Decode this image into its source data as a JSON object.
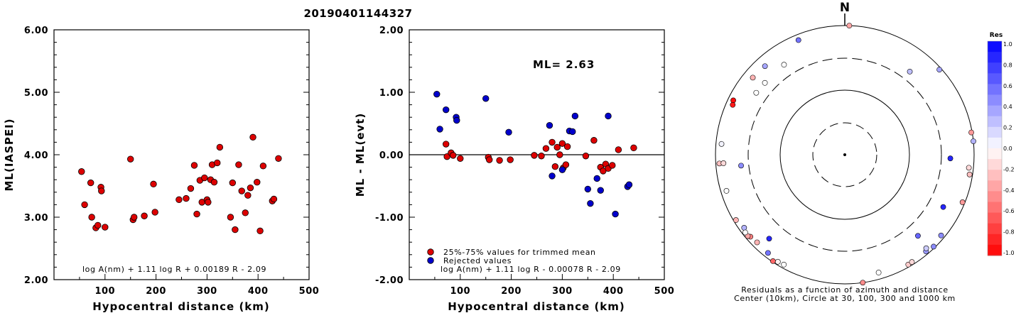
{
  "title": "20190401144327",
  "colors": {
    "red": "#dd0000",
    "blue": "#0000cc"
  },
  "chart_data": [
    {
      "type": "scatter",
      "xlabel": "Hypocentral distance (km)",
      "ylabel": "ML(IASPEI)",
      "xlim": [
        0,
        500
      ],
      "ylim": [
        2.0,
        6.0
      ],
      "xticks": [
        "100",
        "200",
        "300",
        "400",
        "500"
      ],
      "yticks": [
        "2.00",
        "3.00",
        "4.00",
        "5.00",
        "6.00"
      ],
      "formula": "log A(nm) + 1.11 log R + 0.00189 R - 2.09",
      "points": [
        [
          54,
          3.73
        ],
        [
          60,
          3.2
        ],
        [
          72,
          3.55
        ],
        [
          74,
          3.0
        ],
        [
          82,
          2.83
        ],
        [
          86,
          2.87
        ],
        [
          92,
          3.48
        ],
        [
          93,
          3.42
        ],
        [
          100,
          2.84
        ],
        [
          150,
          3.93
        ],
        [
          155,
          2.96
        ],
        [
          157,
          3.0
        ],
        [
          177,
          3.02
        ],
        [
          195,
          3.53
        ],
        [
          198,
          3.08
        ],
        [
          245,
          3.28
        ],
        [
          259,
          3.3
        ],
        [
          268,
          3.46
        ],
        [
          275,
          3.83
        ],
        [
          280,
          3.05
        ],
        [
          286,
          3.59
        ],
        [
          290,
          3.24
        ],
        [
          295,
          3.63
        ],
        [
          300,
          3.28
        ],
        [
          302,
          3.24
        ],
        [
          307,
          3.6
        ],
        [
          310,
          3.84
        ],
        [
          314,
          3.56
        ],
        [
          320,
          3.87
        ],
        [
          325,
          4.12
        ],
        [
          346,
          3.0
        ],
        [
          350,
          3.55
        ],
        [
          355,
          2.8
        ],
        [
          362,
          3.84
        ],
        [
          368,
          3.42
        ],
        [
          375,
          3.07
        ],
        [
          380,
          3.35
        ],
        [
          385,
          3.47
        ],
        [
          390,
          4.28
        ],
        [
          398,
          3.56
        ],
        [
          404,
          2.78
        ],
        [
          410,
          3.82
        ],
        [
          428,
          3.26
        ],
        [
          431,
          3.29
        ],
        [
          440,
          3.94
        ]
      ]
    },
    {
      "type": "scatter",
      "xlabel": "Hypocentral distance (km)",
      "ylabel": "ML - ML(evt)",
      "xlim": [
        0,
        500
      ],
      "ylim": [
        -2.0,
        2.0
      ],
      "xticks": [
        "100",
        "200",
        "300",
        "400",
        "500"
      ],
      "yticks": [
        "-2.00",
        "-1.00",
        "0.00",
        "1.00",
        "2.00"
      ],
      "annotation": "ML= 2.63",
      "formula": "log A(nm) + 1.11 log R - 0.00078 R - 2.09",
      "legend": [
        "25%-75% values for trimmed mean",
        "Rejected values"
      ],
      "series": [
        {
          "name": "25%-75% values for trimmed mean",
          "color": "red",
          "points": [
            [
              72,
              0.17
            ],
            [
              74,
              -0.03
            ],
            [
              82,
              0.03
            ],
            [
              86,
              -0.01
            ],
            [
              100,
              -0.06
            ],
            [
              155,
              -0.04
            ],
            [
              157,
              -0.08
            ],
            [
              177,
              -0.09
            ],
            [
              198,
              -0.08
            ],
            [
              245,
              -0.01
            ],
            [
              259,
              -0.02
            ],
            [
              268,
              0.1
            ],
            [
              280,
              0.2
            ],
            [
              286,
              -0.19
            ],
            [
              290,
              0.12
            ],
            [
              295,
              0.0
            ],
            [
              300,
              0.18
            ],
            [
              302,
              -0.21
            ],
            [
              307,
              -0.16
            ],
            [
              310,
              0.13
            ],
            [
              346,
              -0.02
            ],
            [
              362,
              0.23
            ],
            [
              375,
              -0.2
            ],
            [
              380,
              -0.26
            ],
            [
              385,
              -0.15
            ],
            [
              390,
              -0.22
            ],
            [
              398,
              -0.17
            ],
            [
              410,
              0.08
            ],
            [
              440,
              0.11
            ]
          ]
        },
        {
          "name": "Rejected values",
          "color": "blue",
          "points": [
            [
              54,
              0.97
            ],
            [
              60,
              0.41
            ],
            [
              72,
              0.72
            ],
            [
              92,
              0.6
            ],
            [
              93,
              0.55
            ],
            [
              150,
              0.9
            ],
            [
              195,
              0.36
            ],
            [
              275,
              0.47
            ],
            [
              280,
              -0.34
            ],
            [
              300,
              -0.24
            ],
            [
              314,
              0.38
            ],
            [
              320,
              0.37
            ],
            [
              325,
              0.62
            ],
            [
              350,
              -0.55
            ],
            [
              355,
              -0.78
            ],
            [
              368,
              -0.38
            ],
            [
              375,
              -0.57
            ],
            [
              390,
              0.62
            ],
            [
              404,
              -0.95
            ],
            [
              428,
              -0.51
            ],
            [
              431,
              -0.48
            ]
          ]
        }
      ]
    },
    {
      "type": "polar-scatter",
      "north_label": "N",
      "caption_line1": "Residuals as a function of azimuth and distance",
      "caption_line2": "Center (10km), Circle at 30, 100, 300 and 1000 km",
      "colorbar_title": "Res",
      "colorbar_ticks": [
        "1.0",
        "0.8",
        "0.6",
        "0.4",
        "0.2",
        "0.0",
        "-0.2",
        "-0.4",
        "-0.6",
        "-0.8",
        "-1.0"
      ],
      "stations": [
        {
          "az": 2,
          "dist": 1000,
          "res": -0.35
        },
        {
          "az": 338,
          "dist": 820,
          "res": 0.55
        },
        {
          "az": 310,
          "dist": 720,
          "res": -0.3
        },
        {
          "az": 296,
          "dist": 830,
          "res": -0.95
        },
        {
          "az": 294,
          "dist": 790,
          "res": -0.9
        },
        {
          "az": 318,
          "dist": 700,
          "res": 0.35
        },
        {
          "az": 326,
          "dist": 480,
          "res": 0.0
        },
        {
          "az": 312,
          "dist": 460,
          "res": 0.0
        },
        {
          "az": 305,
          "dist": 470,
          "res": 0.0
        },
        {
          "az": 275,
          "dist": 820,
          "res": 0.05
        },
        {
          "az": 266,
          "dist": 880,
          "res": -0.25
        },
        {
          "az": 266,
          "dist": 760,
          "res": -0.15
        },
        {
          "az": 253,
          "dist": 820,
          "res": 0.0
        },
        {
          "az": 264,
          "dist": 410,
          "res": 0.45
        },
        {
          "az": 38,
          "dist": 430,
          "res": 0.25
        },
        {
          "az": 48,
          "dist": 930,
          "res": 0.35
        },
        {
          "az": 80,
          "dist": 970,
          "res": -0.4
        },
        {
          "az": 84,
          "dist": 1000,
          "res": 0.3
        },
        {
          "az": 92,
          "dist": 430,
          "res": 0.85
        },
        {
          "az": 96,
          "dist": 850,
          "res": -0.15
        },
        {
          "az": 99,
          "dist": 900,
          "res": -0.25
        },
        {
          "az": 112,
          "dist": 920,
          "res": -0.4
        },
        {
          "az": 118,
          "dist": 530,
          "res": 0.85
        },
        {
          "az": 130,
          "dist": 880,
          "res": 0.45
        },
        {
          "az": 136,
          "dist": 950,
          "res": 0.45
        },
        {
          "az": 138,
          "dist": 490,
          "res": 0.6
        },
        {
          "az": 140,
          "dist": 900,
          "res": 0.4
        },
        {
          "az": 139,
          "dist": 830,
          "res": 0.2
        },
        {
          "az": 150,
          "dist": 920,
          "res": -0.2
        },
        {
          "az": 148,
          "dist": 910,
          "res": -0.15
        },
        {
          "az": 164,
          "dist": 790,
          "res": 0.0
        },
        {
          "az": 172,
          "dist": 1000,
          "res": -0.45
        },
        {
          "az": 222,
          "dist": 560,
          "res": 0.85
        },
        {
          "az": 209,
          "dist": 880,
          "res": 0.0
        },
        {
          "az": 212,
          "dist": 900,
          "res": -0.05
        },
        {
          "az": 214,
          "dist": 970,
          "res": -0.6
        },
        {
          "az": 218,
          "dist": 850,
          "res": 0.55
        },
        {
          "az": 225,
          "dist": 830,
          "res": -0.3
        },
        {
          "az": 229,
          "dist": 860,
          "res": -0.5
        },
        {
          "az": 230,
          "dist": 910,
          "res": -0.35
        },
        {
          "az": 234,
          "dist": 840,
          "res": 0.3
        },
        {
          "az": 232,
          "dist": 900,
          "res": 0.0
        },
        {
          "az": 239,
          "dist": 920,
          "res": -0.3
        }
      ]
    }
  ]
}
